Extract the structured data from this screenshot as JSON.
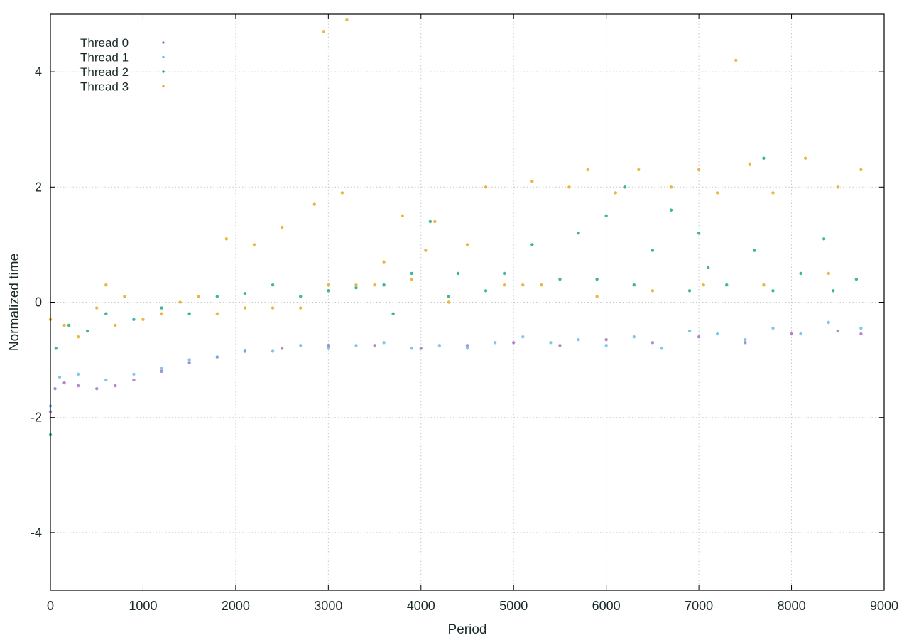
{
  "chart_data": {
    "type": "scatter",
    "title": "",
    "xlabel": "Period",
    "ylabel": "Normalized time",
    "xlim": [
      0,
      9000
    ],
    "ylim": [
      -5,
      5
    ],
    "xticks": [
      0,
      1000,
      2000,
      3000,
      4000,
      5000,
      6000,
      7000,
      8000,
      9000
    ],
    "yticks": [
      -4,
      -2,
      0,
      2,
      4
    ],
    "grid": true,
    "grid_style": "dotted",
    "legend_position": "top-left",
    "series": [
      {
        "name": "Thread 0",
        "color": "#9b5fc0",
        "description": "dense band near baseline, overlapping Thread 1",
        "points": [
          [
            0,
            -1.9
          ],
          [
            50,
            -1.5
          ],
          [
            150,
            -1.4
          ],
          [
            300,
            -1.45
          ],
          [
            500,
            -1.5
          ],
          [
            700,
            -1.45
          ],
          [
            900,
            -1.35
          ],
          [
            1200,
            -1.2
          ],
          [
            1500,
            -1.05
          ],
          [
            1800,
            -0.95
          ],
          [
            2100,
            -0.85
          ],
          [
            2500,
            -0.8
          ],
          [
            3000,
            -0.75
          ],
          [
            3500,
            -0.75
          ],
          [
            4000,
            -0.8
          ],
          [
            4500,
            -0.75
          ],
          [
            5000,
            -0.7
          ],
          [
            5500,
            -0.75
          ],
          [
            6000,
            -0.65
          ],
          [
            6500,
            -0.7
          ],
          [
            7000,
            -0.6
          ],
          [
            7500,
            -0.7
          ],
          [
            8000,
            -0.55
          ],
          [
            8500,
            -0.5
          ],
          [
            8750,
            -0.55
          ]
        ]
      },
      {
        "name": "Thread 1",
        "color": "#56b4e9",
        "description": "baseline band plus sparse scatter",
        "points": [
          [
            0,
            -1.8
          ],
          [
            100,
            -1.3
          ],
          [
            300,
            -1.25
          ],
          [
            600,
            -1.35
          ],
          [
            900,
            -1.25
          ],
          [
            1200,
            -1.15
          ],
          [
            1500,
            -1.0
          ],
          [
            1800,
            -0.95
          ],
          [
            2100,
            -0.85
          ],
          [
            2400,
            -0.85
          ],
          [
            2700,
            -0.75
          ],
          [
            3000,
            -0.8
          ],
          [
            3300,
            -0.75
          ],
          [
            3600,
            -0.7
          ],
          [
            3900,
            -0.8
          ],
          [
            4200,
            -0.75
          ],
          [
            4500,
            -0.8
          ],
          [
            4800,
            -0.7
          ],
          [
            5100,
            -0.6
          ],
          [
            5400,
            -0.7
          ],
          [
            5700,
            -0.65
          ],
          [
            6000,
            -0.75
          ],
          [
            6300,
            -0.6
          ],
          [
            6600,
            -0.8
          ],
          [
            6900,
            -0.5
          ],
          [
            7200,
            -0.55
          ],
          [
            7500,
            -0.65
          ],
          [
            7800,
            -0.45
          ],
          [
            8100,
            -0.55
          ],
          [
            8400,
            -0.35
          ],
          [
            8750,
            -0.45
          ]
        ]
      },
      {
        "name": "Thread 2",
        "color": "#009e73",
        "description": "green sawtooth ramps",
        "points": [
          [
            0,
            -2.3
          ],
          [
            60,
            -0.8
          ],
          [
            200,
            -0.4
          ],
          [
            400,
            -0.5
          ],
          [
            600,
            -0.2
          ],
          [
            900,
            -0.3
          ],
          [
            1200,
            -0.1
          ],
          [
            1500,
            -0.2
          ],
          [
            1800,
            0.1
          ],
          [
            2100,
            0.15
          ],
          [
            2400,
            0.3
          ],
          [
            2700,
            0.1
          ],
          [
            3000,
            0.2
          ],
          [
            3300,
            0.25
          ],
          [
            3600,
            0.3
          ],
          [
            3700,
            -0.2
          ],
          [
            3900,
            0.5
          ],
          [
            4100,
            1.4
          ],
          [
            4300,
            0.1
          ],
          [
            4400,
            0.5
          ],
          [
            4700,
            0.2
          ],
          [
            4900,
            0.5
          ],
          [
            5200,
            1.0
          ],
          [
            5500,
            0.4
          ],
          [
            5700,
            1.2
          ],
          [
            5900,
            0.4
          ],
          [
            6000,
            1.5
          ],
          [
            6200,
            2.0
          ],
          [
            6300,
            0.3
          ],
          [
            6500,
            0.9
          ],
          [
            6700,
            1.6
          ],
          [
            6900,
            0.2
          ],
          [
            7000,
            1.2
          ],
          [
            7100,
            0.6
          ],
          [
            7300,
            0.3
          ],
          [
            7600,
            0.9
          ],
          [
            7700,
            2.5
          ],
          [
            7800,
            0.2
          ],
          [
            8100,
            0.5
          ],
          [
            8350,
            1.1
          ],
          [
            8450,
            0.2
          ],
          [
            8700,
            0.4
          ]
        ]
      },
      {
        "name": "Thread 3",
        "color": "#e69f00",
        "description": "orange sawtooth ramps with outliers",
        "points": [
          [
            0,
            -0.3
          ],
          [
            150,
            -0.4
          ],
          [
            300,
            -0.6
          ],
          [
            500,
            -0.1
          ],
          [
            600,
            0.3
          ],
          [
            700,
            -0.4
          ],
          [
            800,
            0.1
          ],
          [
            1000,
            -0.3
          ],
          [
            1200,
            -0.2
          ],
          [
            1400,
            0.0
          ],
          [
            1600,
            0.1
          ],
          [
            1800,
            -0.2
          ],
          [
            1900,
            1.1
          ],
          [
            2100,
            -0.1
          ],
          [
            2200,
            1.0
          ],
          [
            2400,
            -0.1
          ],
          [
            2500,
            1.3
          ],
          [
            2700,
            -0.1
          ],
          [
            2850,
            1.7
          ],
          [
            3000,
            0.3
          ],
          [
            3150,
            1.9
          ],
          [
            3300,
            0.3
          ],
          [
            3500,
            0.3
          ],
          [
            3600,
            0.7
          ],
          [
            3800,
            1.5
          ],
          [
            3900,
            0.4
          ],
          [
            4050,
            0.9
          ],
          [
            4150,
            1.4
          ],
          [
            4300,
            0.0
          ],
          [
            4500,
            1.0
          ],
          [
            4700,
            2.0
          ],
          [
            4900,
            0.3
          ],
          [
            5100,
            0.3
          ],
          [
            5200,
            2.1
          ],
          [
            5300,
            0.3
          ],
          [
            5600,
            2.0
          ],
          [
            5800,
            2.3
          ],
          [
            5900,
            0.1
          ],
          [
            6100,
            1.9
          ],
          [
            6350,
            2.3
          ],
          [
            6500,
            0.2
          ],
          [
            6700,
            2.0
          ],
          [
            7000,
            2.3
          ],
          [
            7050,
            0.3
          ],
          [
            7200,
            1.9
          ],
          [
            7550,
            2.4
          ],
          [
            7700,
            0.3
          ],
          [
            7800,
            1.9
          ],
          [
            8150,
            2.5
          ],
          [
            8400,
            0.5
          ],
          [
            8500,
            2.0
          ],
          [
            8750,
            2.3
          ],
          [
            3200,
            4.9
          ],
          [
            2950,
            4.7
          ],
          [
            7400,
            4.2
          ]
        ]
      }
    ]
  }
}
